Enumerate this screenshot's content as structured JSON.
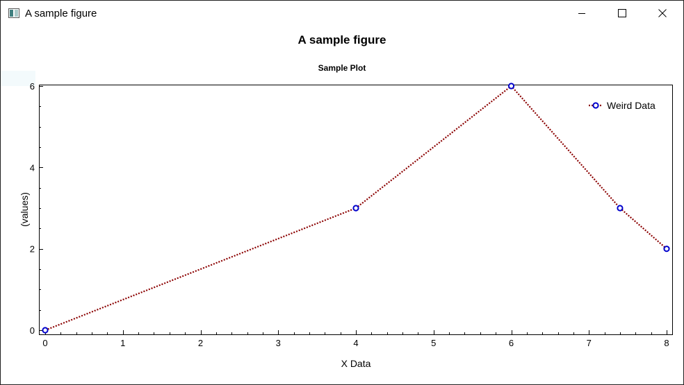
{
  "window": {
    "title": "A sample figure",
    "controls": {
      "minimize": "minimize",
      "maximize": "maximize",
      "close": "close"
    }
  },
  "figure_title": "A sample figure",
  "chart_data": {
    "type": "line",
    "title": "Sample Plot",
    "xlabel": "X Data",
    "ylabel": "(values)",
    "xlim": [
      0,
      8
    ],
    "ylim": [
      0,
      6
    ],
    "x_ticks": [
      "0",
      "1",
      "2",
      "3",
      "4",
      "5",
      "6",
      "7",
      "8"
    ],
    "y_ticks": [
      "0",
      "2",
      "4",
      "6"
    ],
    "series": [
      {
        "name": "Weird Data",
        "x": [
          0,
          4,
          6,
          7.4,
          8
        ],
        "y": [
          0,
          3,
          6,
          3,
          2
        ],
        "line_color": "#8b0000",
        "line_style": "dotted",
        "marker": "circle",
        "marker_color": "#0000cc"
      }
    ],
    "legend": {
      "position": "top-right"
    },
    "grid": false
  }
}
